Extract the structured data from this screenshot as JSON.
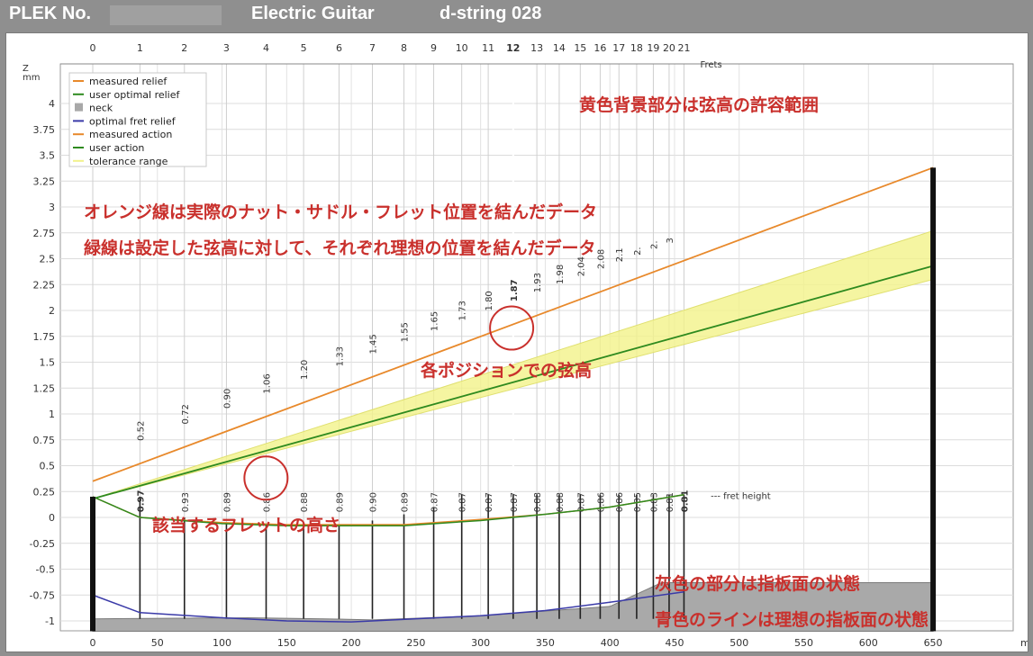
{
  "header": {
    "plek_label": "PLEK No.",
    "instrument": "Electric Guitar",
    "string": "d-string 028"
  },
  "chart_data": {
    "type": "line",
    "x_axis": {
      "label": "mm",
      "range": [
        0,
        650
      ],
      "ticks": [
        0,
        50,
        100,
        150,
        200,
        250,
        300,
        350,
        400,
        450,
        500,
        550,
        600,
        650
      ]
    },
    "y_axis": {
      "label": "mm",
      "range": [
        -1.1,
        4.1
      ],
      "ticks": [
        -1,
        -0.75,
        -0.5,
        -0.25,
        0,
        0.25,
        0.5,
        0.75,
        1,
        1.25,
        1.5,
        1.75,
        2,
        2.25,
        2.5,
        2.75,
        3,
        3.25,
        3.5,
        3.75,
        4
      ]
    },
    "z_label": "Z",
    "frets_label": "Frets",
    "fret_numbers": [
      "0",
      "1",
      "2",
      "3",
      "4",
      "5",
      "6",
      "7",
      "8",
      "9",
      "10",
      "11",
      "12",
      "13",
      "14",
      "15",
      "16",
      "17",
      "18",
      "19",
      "20",
      "21"
    ],
    "fret_positions_mm": [
      0,
      36.5,
      70.9,
      103.4,
      134.1,
      163.1,
      190.5,
      216.3,
      240.7,
      263.7,
      285.4,
      305.9,
      325.2,
      343.5,
      360.8,
      377.1,
      392.5,
      407.0,
      420.7,
      433.6,
      445.8,
      457.3
    ],
    "highlight_fret": "12",
    "grid": true,
    "legend_position": "top-left",
    "legend": [
      {
        "name": "measured relief",
        "color": "#e8892b",
        "kind": "line"
      },
      {
        "name": "user optimal relief",
        "color": "#2e8a1f",
        "kind": "line"
      },
      {
        "name": "neck",
        "color": "#a8a8a8",
        "kind": "box"
      },
      {
        "name": "optimal fret relief",
        "color": "#3a3aa8",
        "kind": "line"
      },
      {
        "name": "measured action",
        "color": "#e8892b",
        "kind": "line"
      },
      {
        "name": "user action",
        "color": "#2e8a1f",
        "kind": "line"
      },
      {
        "name": "tolerance range",
        "color": "#f2f28a",
        "kind": "line"
      }
    ],
    "measured_action": {
      "x": [
        0,
        650
      ],
      "y": [
        0.35,
        3.38
      ]
    },
    "user_action": {
      "x": [
        0,
        650
      ],
      "y": [
        0.18,
        2.43
      ]
    },
    "tolerance_range": {
      "x": [
        0,
        650
      ],
      "y_low": [
        0.18,
        2.3
      ],
      "y_high": [
        0.18,
        2.77
      ]
    },
    "action_labels": [
      "0.52",
      "0.72",
      "0.90",
      "1.06",
      "1.20",
      "1.33",
      "1.45",
      "1.55",
      "1.65",
      "1.73",
      "1.80",
      "1.87",
      "1.93",
      "1.98",
      "2.04",
      "2.08",
      "2.1",
      "2.",
      "2.",
      "3"
    ],
    "fret_heights": [
      "0.97",
      "0.93",
      "0.89",
      "0.86",
      "0.88",
      "0.89",
      "0.90",
      "0.89",
      "0.87",
      "0.87",
      "0.87",
      "0.87",
      "0.88",
      "0.88",
      "0.87",
      "0.86",
      "0.86",
      "0.85",
      "0.83",
      "0.81",
      "0.81"
    ],
    "fret_height_label": "--- fret height",
    "measured_relief": {
      "x": [
        0,
        36.5,
        100,
        150,
        200,
        240.7,
        300,
        350,
        400,
        457.3
      ],
      "y": [
        0.2,
        0.0,
        -0.05,
        -0.07,
        -0.07,
        -0.07,
        -0.02,
        0.03,
        0.1,
        0.22
      ]
    },
    "user_optimal_relief": {
      "x": [
        0,
        36.5,
        100,
        150,
        200,
        240.7,
        300,
        350,
        400,
        457.3
      ],
      "y": [
        0.2,
        0.0,
        -0.06,
        -0.08,
        -0.08,
        -0.08,
        -0.03,
        0.03,
        0.1,
        0.22
      ]
    },
    "optimal_fret_relief": {
      "x": [
        0,
        36.5,
        100,
        150,
        200,
        216.3,
        300,
        350,
        400,
        457.3
      ],
      "y": [
        -0.75,
        -0.92,
        -0.97,
        -1.0,
        -1.01,
        -1.0,
        -0.95,
        -0.9,
        -0.82,
        -0.72
      ]
    },
    "neck": {
      "x": [
        0,
        120,
        180,
        216.3,
        300,
        400,
        440,
        650
      ],
      "y": [
        -0.98,
        -0.97,
        -0.98,
        -0.99,
        -0.95,
        -0.86,
        -0.63,
        -0.63
      ]
    },
    "annotations": [
      "黄色背景部分は弦高の許容範囲",
      "オレンジ線は実際のナット・サドル・フレット位置を結んだデータ",
      "緑線は設定した弦高に対して、それぞれ理想の位置を結んだデータ",
      "各ポジションでの弦高",
      "該当するフレットの高さ",
      "灰色の部分は指板面の状態",
      "青色のラインは理想の指板面の状態"
    ]
  }
}
